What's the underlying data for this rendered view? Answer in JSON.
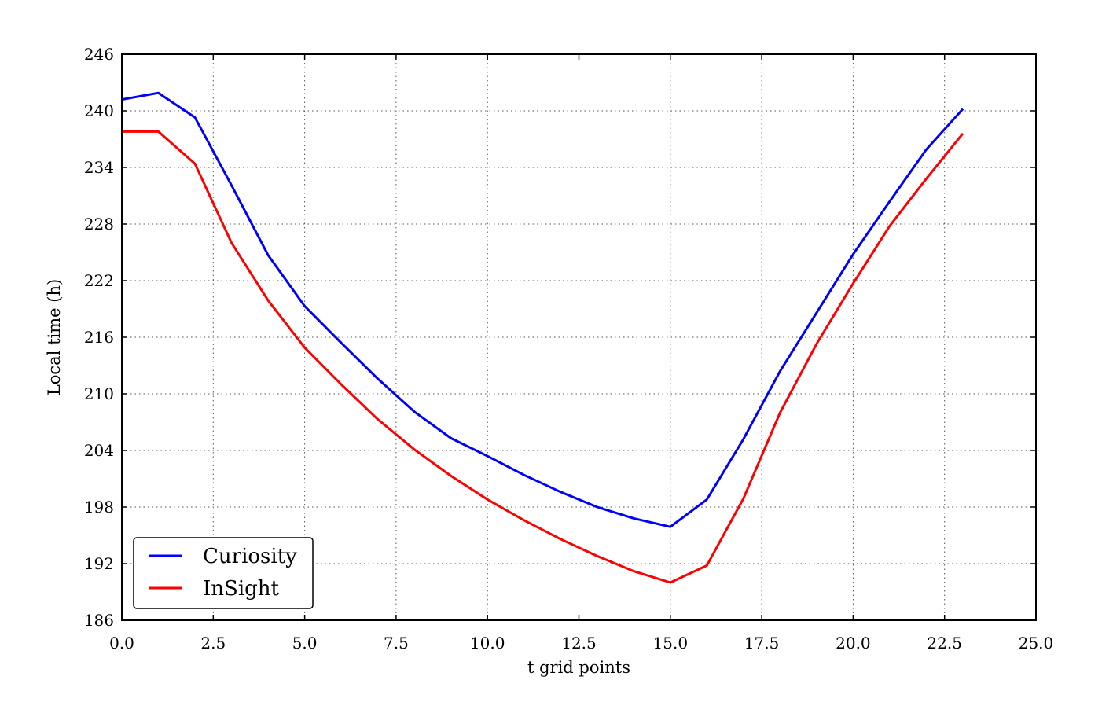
{
  "chart_data": {
    "type": "line",
    "xlabel": "t grid points",
    "ylabel": "Local time (h)",
    "xlim": [
      0,
      25
    ],
    "ylim": [
      186,
      246
    ],
    "xticks": [
      "0.0",
      "2.5",
      "5.0",
      "7.5",
      "10.0",
      "12.5",
      "15.0",
      "17.5",
      "20.0",
      "22.5",
      "25.0"
    ],
    "yticks": [
      "186",
      "192",
      "198",
      "204",
      "210",
      "216",
      "222",
      "228",
      "234",
      "240",
      "246"
    ],
    "grid": true,
    "legend_position": "lower-left",
    "x": [
      0,
      1,
      2,
      3,
      4,
      5,
      6,
      7,
      8,
      9,
      10,
      11,
      12,
      13,
      14,
      15,
      16,
      17,
      18,
      19,
      20,
      21,
      22,
      23
    ],
    "series": [
      {
        "name": "Curiosity",
        "color": "#0000ff",
        "values": [
          241.2,
          241.9,
          239.3,
          232.1,
          224.7,
          219.3,
          215.4,
          211.6,
          208.1,
          205.3,
          203.4,
          201.4,
          199.6,
          198.0,
          196.8,
          195.9,
          198.8,
          205.2,
          212.4,
          218.6,
          224.8,
          230.4,
          235.9,
          240.2
        ]
      },
      {
        "name": "InSight",
        "color": "#ff0000",
        "values": [
          237.8,
          237.8,
          234.4,
          226.0,
          219.9,
          214.9,
          211.0,
          207.3,
          204.1,
          201.3,
          198.8,
          196.6,
          194.6,
          192.8,
          191.2,
          190.0,
          191.8,
          198.9,
          208.0,
          215.3,
          221.7,
          227.8,
          232.8,
          237.6
        ]
      }
    ]
  }
}
